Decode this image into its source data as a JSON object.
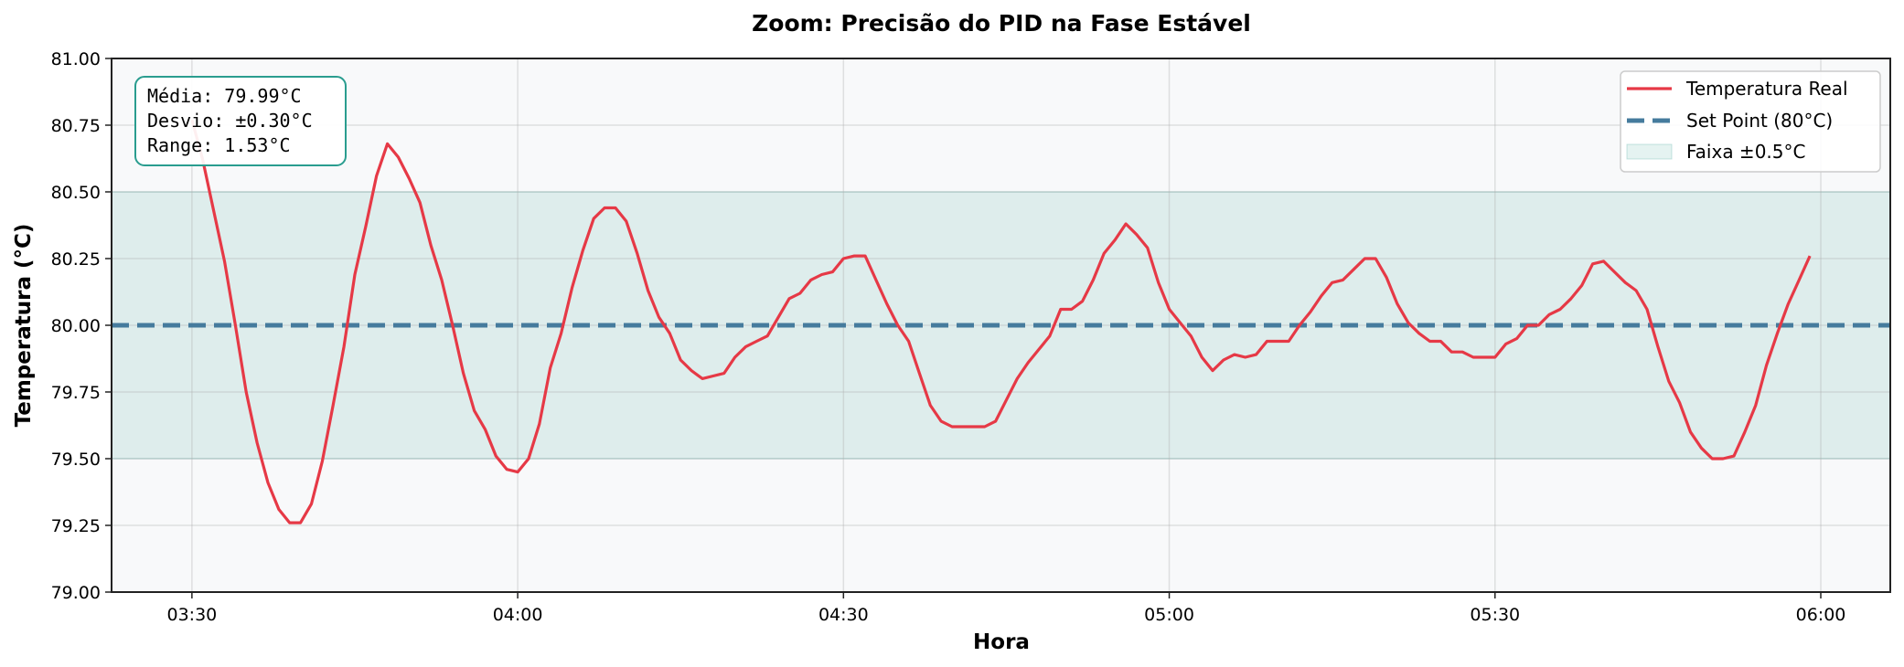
{
  "chart_data": {
    "type": "line",
    "title": "Zoom: Precisão do PID na Fase Estável",
    "xlabel": "Hora",
    "ylabel": "Temperatura (°C)",
    "ylim": [
      79.0,
      81.0
    ],
    "xlim_minutes": [
      202.6,
      366.4
    ],
    "grid": true,
    "legend_position": "upper right",
    "y_ticks": [
      "79.00",
      "79.25",
      "79.50",
      "79.75",
      "80.00",
      "80.25",
      "80.50",
      "80.75",
      "81.00"
    ],
    "x_ticks": [
      {
        "label": "03:30",
        "minute": 210
      },
      {
        "label": "04:00",
        "minute": 240
      },
      {
        "label": "04:30",
        "minute": 270
      },
      {
        "label": "05:00",
        "minute": 300
      },
      {
        "label": "05:30",
        "minute": 330
      },
      {
        "label": "06:00",
        "minute": 360
      }
    ],
    "series": [
      {
        "name": "Temperatura Real",
        "color": "#e63946",
        "style": "solid",
        "x_start": "03:30",
        "x_step_minutes": 1,
        "values": [
          80.77,
          80.62,
          80.43,
          80.24,
          80.0,
          79.75,
          79.56,
          79.41,
          79.31,
          79.26,
          79.26,
          79.33,
          79.49,
          79.7,
          79.92,
          80.19,
          80.37,
          80.56,
          80.68,
          80.63,
          80.55,
          80.46,
          80.3,
          80.17,
          80.0,
          79.82,
          79.68,
          79.61,
          79.51,
          79.46,
          79.45,
          79.5,
          79.63,
          79.84,
          79.97,
          80.14,
          80.28,
          80.4,
          80.44,
          80.44,
          80.39,
          80.27,
          80.13,
          80.03,
          79.97,
          79.87,
          79.83,
          79.8,
          79.81,
          79.82,
          79.88,
          79.92,
          79.94,
          79.96,
          80.03,
          80.1,
          80.12,
          80.17,
          80.19,
          80.2,
          80.25,
          80.26,
          80.26,
          80.17,
          80.08,
          80.0,
          79.94,
          79.82,
          79.7,
          79.64,
          79.62,
          79.62,
          79.62,
          79.62,
          79.64,
          79.72,
          79.8,
          79.86,
          79.91,
          79.96,
          80.06,
          80.06,
          80.09,
          80.17,
          80.27,
          80.32,
          80.38,
          80.34,
          80.29,
          80.16,
          80.06,
          80.01,
          79.96,
          79.88,
          79.83,
          79.87,
          79.89,
          79.88,
          79.89,
          79.94,
          79.94,
          79.94,
          80.0,
          80.05,
          80.11,
          80.16,
          80.17,
          80.21,
          80.25,
          80.25,
          80.18,
          80.08,
          80.01,
          79.97,
          79.94,
          79.94,
          79.9,
          79.9,
          79.88,
          79.88,
          79.88,
          79.93,
          79.95,
          80.0,
          80.0,
          80.04,
          80.06,
          80.1,
          80.15,
          80.23,
          80.24,
          80.2,
          80.16,
          80.13,
          80.06,
          79.92,
          79.79,
          79.71,
          79.6,
          79.54,
          79.5,
          79.5,
          79.51,
          79.6,
          79.7,
          79.85,
          79.97,
          80.08,
          80.17,
          80.26
        ]
      },
      {
        "name": "Set Point (80°C)",
        "color": "#457b9d",
        "style": "dashed",
        "constant": 80.0
      }
    ],
    "band": {
      "name": "Faixa ±0.5°C",
      "lower": 79.5,
      "upper": 80.5,
      "color": "#2a9d8f",
      "opacity": 0.1
    },
    "annotations": [
      {
        "type": "stats_box",
        "lines": [
          "Média: 79.99°C",
          "Desvio: ±0.30°C",
          "Range: 1.53°C"
        ],
        "position": "upper left"
      }
    ]
  },
  "stats_box": {
    "line1": "Média: 79.99°C",
    "line2": "Desvio: ±0.30°C",
    "line3": "Range: 1.53°C"
  },
  "legend": {
    "item1": "Temperatura Real",
    "item2": "Set Point (80°C)",
    "item3": "Faixa ±0.5°C"
  },
  "colors": {
    "real": "#e63946",
    "setpoint": "#457b9d",
    "band": "#2a9d8f",
    "plot_bg": "#f8f9fa",
    "box_border": "#2a9d8f"
  }
}
